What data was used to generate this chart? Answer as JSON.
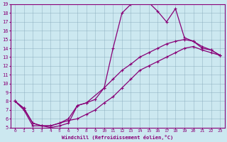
{
  "xlabel": "Windchill (Refroidissement éolien,°C)",
  "bg_color": "#cce8f0",
  "line_color": "#880077",
  "grid_color": "#88aabb",
  "xlim": [
    -0.5,
    23.5
  ],
  "ylim": [
    5,
    19
  ],
  "xticks": [
    0,
    1,
    2,
    3,
    4,
    5,
    6,
    7,
    8,
    9,
    10,
    11,
    12,
    13,
    14,
    15,
    16,
    17,
    18,
    19,
    20,
    21,
    22,
    23
  ],
  "yticks": [
    5,
    6,
    7,
    8,
    9,
    10,
    11,
    12,
    13,
    14,
    15,
    16,
    17,
    18,
    19
  ],
  "curve1_x": [
    0,
    1,
    2,
    3,
    4,
    5,
    6,
    7,
    8,
    10,
    11,
    12,
    13,
    14,
    15,
    16,
    17,
    18,
    19,
    20,
    21,
    22,
    23
  ],
  "curve1_y": [
    8,
    7,
    5.2,
    5.2,
    5,
    5.2,
    5.5,
    7.5,
    7.8,
    9.5,
    14,
    18,
    19,
    19.2,
    19.2,
    18.2,
    17,
    18.5,
    15.2,
    14.8,
    14,
    13.8,
    13.2
  ],
  "curve2_x": [
    0,
    1,
    2,
    3,
    4,
    5,
    6,
    7,
    8,
    9,
    10,
    11,
    12,
    13,
    14,
    15,
    16,
    17,
    18,
    19,
    20,
    21,
    22,
    23
  ],
  "curve2_y": [
    8,
    7.2,
    5.5,
    5.2,
    5.2,
    5.5,
    6.0,
    7.5,
    7.8,
    8.2,
    9.5,
    10.5,
    11.5,
    12.2,
    13.0,
    13.5,
    14.0,
    14.5,
    14.8,
    15.0,
    14.8,
    14.2,
    13.8,
    13.2
  ],
  "curve3_x": [
    0,
    1,
    2,
    3,
    4,
    5,
    6,
    7,
    8,
    9,
    10,
    11,
    12,
    13,
    14,
    15,
    16,
    17,
    18,
    19,
    20,
    21,
    22,
    23
  ],
  "curve3_y": [
    8,
    7.2,
    5.5,
    5.2,
    5.2,
    5.5,
    5.8,
    6.0,
    6.5,
    7.0,
    7.8,
    8.5,
    9.5,
    10.5,
    11.5,
    12.0,
    12.5,
    13.0,
    13.5,
    14.0,
    14.2,
    13.8,
    13.5,
    13.2
  ]
}
